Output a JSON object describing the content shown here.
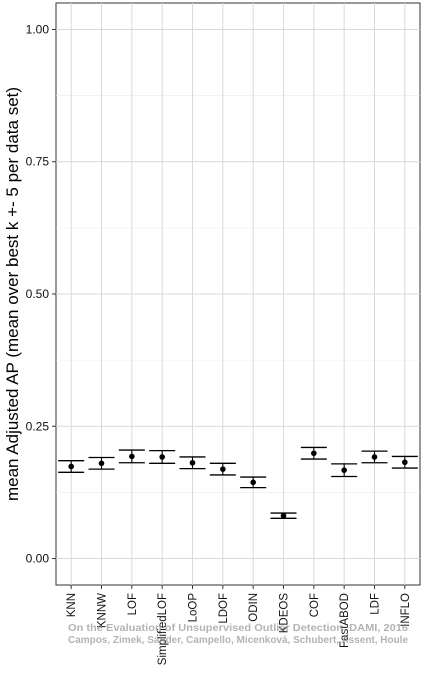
{
  "chart_data": {
    "type": "scatter",
    "ylabel": "mean Adjusted AP (mean over best k +- 5 per data set)",
    "xlabel": "",
    "ylim": [
      -0.05,
      1.05
    ],
    "yticks": [
      0.0,
      0.25,
      0.5,
      0.75,
      1.0
    ],
    "ytick_labels": [
      "0.00",
      "0.25",
      "0.50",
      "0.75",
      "1.00"
    ],
    "grid": true,
    "categories": [
      "KNN",
      "KNNW",
      "LOF",
      "SimplifiedLOF",
      "LoOP",
      "LDOF",
      "ODIN",
      "KDEOS",
      "COF",
      "FastABOD",
      "LDF",
      "INFLO"
    ],
    "values": [
      0.174,
      0.18,
      0.193,
      0.192,
      0.181,
      0.169,
      0.144,
      0.081,
      0.199,
      0.167,
      0.192,
      0.182
    ],
    "lower": [
      0.163,
      0.169,
      0.181,
      0.18,
      0.17,
      0.158,
      0.134,
      0.076,
      0.188,
      0.155,
      0.181,
      0.171
    ],
    "upper": [
      0.185,
      0.191,
      0.205,
      0.204,
      0.192,
      0.18,
      0.154,
      0.086,
      0.21,
      0.179,
      0.203,
      0.193
    ]
  },
  "watermark": {
    "line1": "On the Evaluation of Unsupervised Outlier Detection, DAMI, 2016",
    "line2": "Campos, Zimek, Sander, Campello, Micenková, Schubert, Assent, Houle"
  }
}
